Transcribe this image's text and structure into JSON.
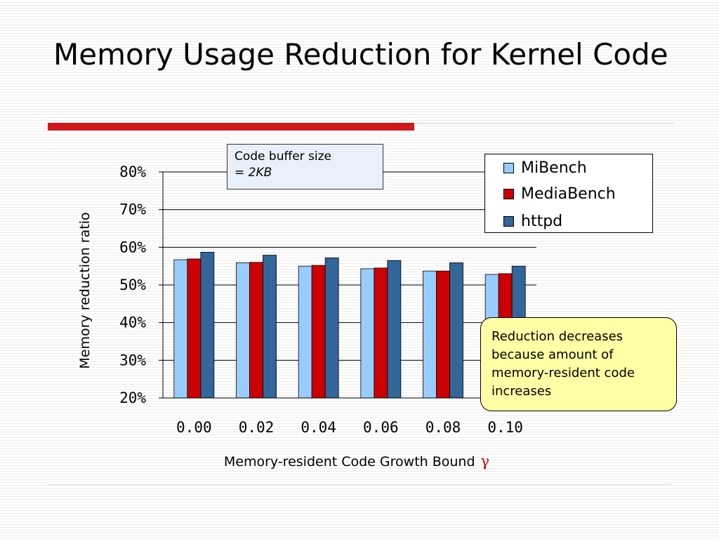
{
  "slide": {
    "title": "Memory Usage Reduction for Kernel Code"
  },
  "callouts": {
    "buffer_line1": "Code buffer size",
    "buffer_line2": "= 2KB",
    "note": "Reduction decreases because amount of memory-resident code increases"
  },
  "colors": {
    "title_rule": "#d11919",
    "note_fill": "#ffffa6",
    "buffer_fill": "#e8f1fb"
  },
  "chart_data": {
    "type": "bar",
    "title": "",
    "xlabel": "Memory-resident Code Growth Bound",
    "xlabel_symbol": "γ",
    "ylabel": "Memory reduction ratio",
    "categories": [
      "0.00",
      "0.02",
      "0.04",
      "0.06",
      "0.08",
      "0.10"
    ],
    "y_ticks": [
      "20%",
      "30%",
      "40%",
      "50%",
      "60%",
      "70%",
      "80%"
    ],
    "ylim": [
      20,
      80
    ],
    "y_unit": "%",
    "grid": true,
    "legend_position": "top-right",
    "series": [
      {
        "name": "MiBench",
        "color": "#99ccff",
        "values": [
          56.7,
          55.9,
          55.0,
          54.3,
          53.7,
          52.8
        ]
      },
      {
        "name": "MediaBench",
        "color": "#cc0000",
        "values": [
          56.9,
          56.0,
          55.2,
          54.5,
          53.7,
          53.0
        ]
      },
      {
        "name": "httpd",
        "color": "#336699",
        "values": [
          58.7,
          57.9,
          57.2,
          56.5,
          55.9,
          55.0
        ]
      }
    ]
  }
}
